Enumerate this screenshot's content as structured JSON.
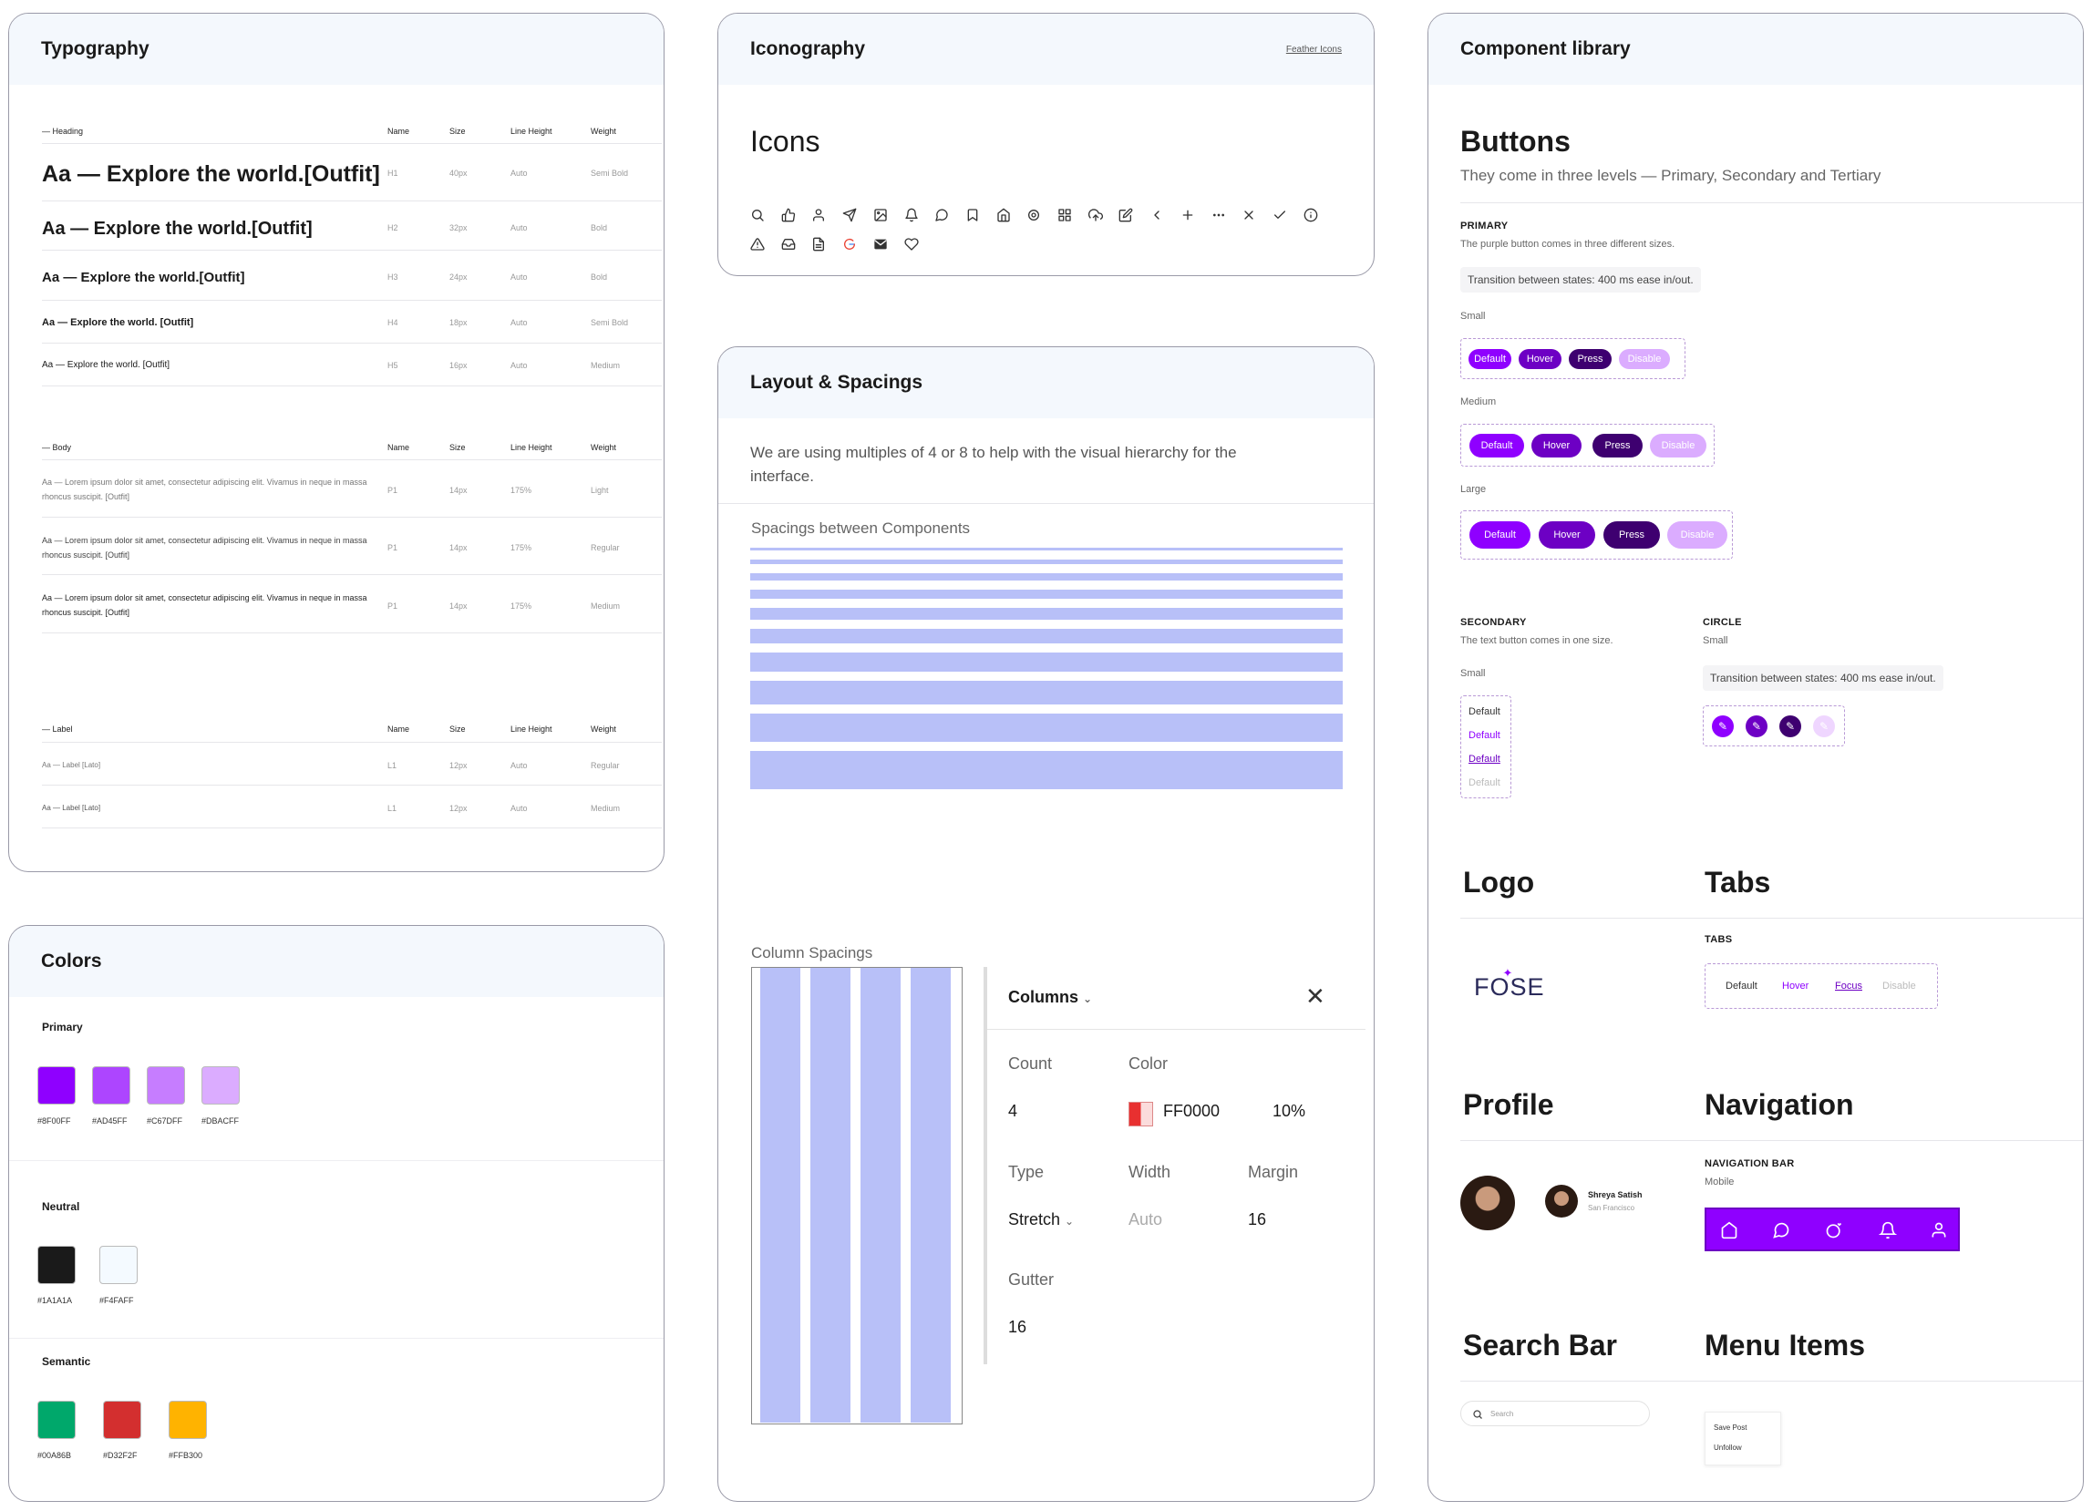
{
  "typography": {
    "title": "Typography",
    "heading_section": {
      "label": "— Heading",
      "cols": [
        "Name",
        "Size",
        "Line Height",
        "Weight"
      ],
      "rows": [
        {
          "sample": "Aa —  Explore the world.[Outfit]",
          "name": "H1",
          "size": "40px",
          "lh": "Auto",
          "weight": "Semi Bold"
        },
        {
          "sample": "Aa —  Explore the world.[Outfit]",
          "name": "H2",
          "size": "32px",
          "lh": "Auto",
          "weight": "Bold"
        },
        {
          "sample": "Aa —  Explore the world.[Outfit]",
          "name": "H3",
          "size": "24px",
          "lh": "Auto",
          "weight": "Bold"
        },
        {
          "sample": "Aa —  Explore the world. [Outfit]",
          "name": "H4",
          "size": "18px",
          "lh": "Auto",
          "weight": "Semi Bold"
        },
        {
          "sample": "Aa —  Explore the world. [Outfit]",
          "name": "H5",
          "size": "16px",
          "lh": "Auto",
          "weight": "Medium"
        }
      ]
    },
    "body_section": {
      "label": "— Body",
      "cols": [
        "Name",
        "Size",
        "Line Height",
        "Weight"
      ],
      "rows": [
        {
          "sample1": "Aa —  Lorem ipsum dolor sit amet, consectetur adipiscing elit. Vivamus in neque in massa",
          "sample2": "rhoncus suscipit. [Outfit]",
          "name": "P1",
          "size": "14px",
          "lh": "175%",
          "weight": "Light"
        },
        {
          "sample1": "Aa —  Lorem ipsum dolor sit amet, consectetur adipiscing elit. Vivamus in neque in massa",
          "sample2": "rhoncus suscipit. [Outfit]",
          "name": "P1",
          "size": "14px",
          "lh": "175%",
          "weight": "Regular"
        },
        {
          "sample1": "Aa —  Lorem ipsum dolor sit amet, consectetur adipiscing elit. Vivamus in neque in massa",
          "sample2": "rhoncus suscipit. [Outfit]",
          "name": "P1",
          "size": "14px",
          "lh": "175%",
          "weight": "Medium"
        }
      ]
    },
    "label_section": {
      "label": "— Label",
      "cols": [
        "Name",
        "Size",
        "Line Height",
        "Weight"
      ],
      "rows": [
        {
          "sample": "Aa —  Label [Lato]",
          "name": "L1",
          "size": "12px",
          "lh": "Auto",
          "weight": "Regular"
        },
        {
          "sample": "Aa —  Label [Lato]",
          "name": "L1",
          "size": "12px",
          "lh": "Auto",
          "weight": "Medium"
        }
      ]
    }
  },
  "colors": {
    "title": "Colors",
    "primary_label": "Primary",
    "primary": [
      {
        "hex": "#8F00FF",
        "label": "#8F00FF"
      },
      {
        "hex": "#AD45FF",
        "label": "#AD45FF"
      },
      {
        "hex": "#C67DFF",
        "label": "#C67DFF"
      },
      {
        "hex": "#DBACFF",
        "label": "#DBACFF"
      }
    ],
    "neutral_label": "Neutral",
    "neutral": [
      {
        "hex": "#1A1A1A",
        "label": "#1A1A1A"
      },
      {
        "hex": "#F4FAFF",
        "label": "#F4FAFF"
      }
    ],
    "semantic_label": "Semantic",
    "semantic": [
      {
        "hex": "#00A86B",
        "label": "#00A86B"
      },
      {
        "hex": "#D32F2F",
        "label": "#D32F2F"
      },
      {
        "hex": "#FFB300",
        "label": "#FFB300"
      }
    ]
  },
  "iconography": {
    "title": "Iconography",
    "link": "Feather Icons",
    "heading": "Icons",
    "icons_row1": [
      "search-icon",
      "thumbs-up-icon",
      "user-icon",
      "send-icon",
      "image-icon",
      "bell-icon",
      "message-circle-icon",
      "bookmark-icon",
      "home-icon",
      "settings-icon",
      "grid-icon",
      "upload-cloud-icon",
      "edit-icon",
      "chevron-left-icon",
      "plus-icon",
      "more-horizontal-icon",
      "x-icon",
      "check-icon",
      "info-icon"
    ],
    "icons_row2": [
      "alert-triangle-icon",
      "inbox-icon",
      "file-text-icon",
      "google-icon",
      "mail-icon",
      "heart-icon"
    ]
  },
  "layout": {
    "title": "Layout & Spacings",
    "description_line1": "We are using multiples of 4 or 8 to help with the visual hierarchy for the",
    "description_line2": "interface.",
    "spacings_label": "Spacings between Components",
    "bar_sizes": [
      4,
      8,
      12,
      16,
      20,
      24,
      32,
      40,
      48,
      64
    ],
    "column_label": "Column Spacings",
    "panel": {
      "title": "Columns",
      "count_label": "Count",
      "count_value": "4",
      "color_label": "Color",
      "color_hex": "FF0000",
      "color_opacity": "10%",
      "type_label": "Type",
      "type_value": "Stretch",
      "width_label": "Width",
      "width_value": "Auto",
      "margin_label": "Margin",
      "margin_value": "16",
      "gutter_label": "Gutter",
      "gutter_value": "16"
    }
  },
  "components": {
    "title": "Component library",
    "buttons_title": "Buttons",
    "buttons_sub": "They come in three levels — Primary, Secondary and Tertiary",
    "primary_cap": "PRIMARY",
    "primary_desc": "The purple button comes in three different sizes.",
    "transition_note": "Transition between states: 400 ms ease in/out.",
    "size_small": "Small",
    "size_medium": "Medium",
    "size_large": "Large",
    "states": [
      "Default",
      "Hover",
      "Press",
      "Disable"
    ],
    "secondary_cap": "SECONDARY",
    "secondary_desc": "The text button comes in one size.",
    "secondary_size": "Small",
    "secondary_states": [
      "Default",
      "Default",
      "Default",
      "Default"
    ],
    "circle_cap": "CIRCLE",
    "circle_size": "Small",
    "circle_note": "Transition between states: 400 ms ease in/out.",
    "logo_title": "Logo",
    "logo_text_1": "F",
    "logo_text_2": "O",
    "logo_text_3": "SE",
    "tabs_title": "Tabs",
    "tabs_cap": "TABS",
    "tabs": [
      "Default",
      "Hover",
      "Focus",
      "Disable"
    ],
    "profile_title": "Profile",
    "profile_name": "Shreya Satish",
    "profile_location": "San Francisco",
    "navigation_title": "Navigation",
    "nav_cap": "NAVIGATION BAR",
    "nav_sub": "Mobile",
    "search_title": "Search Bar",
    "search_placeholder": "Search",
    "menu_title": "Menu Items",
    "menu_items": [
      "Save Post",
      "Unfollow"
    ],
    "colors": {
      "primary": "#8F00FF",
      "hover": "#6D00C4",
      "press": "#3E0070",
      "disable": "#DBACFF"
    }
  }
}
